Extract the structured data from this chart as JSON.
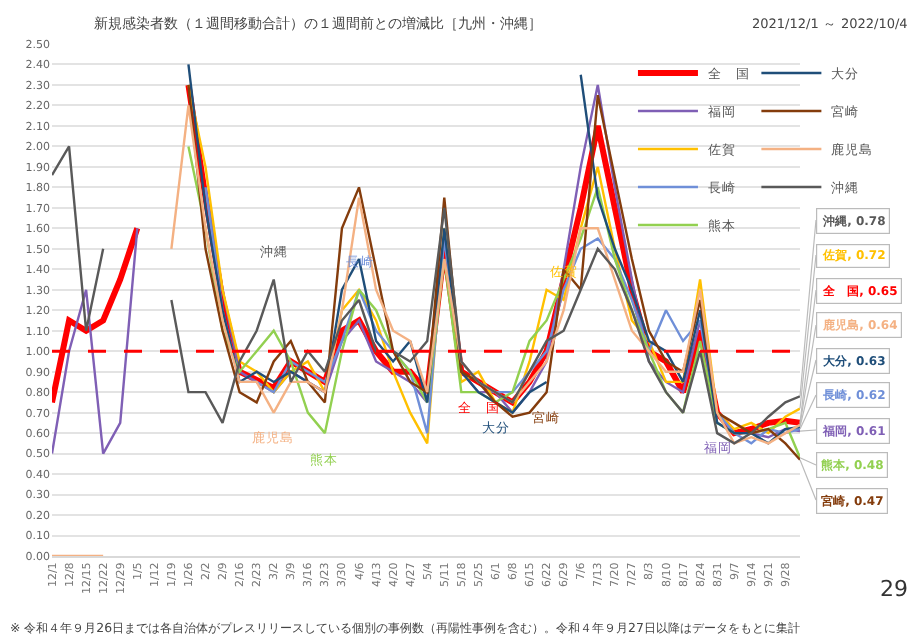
{
  "chart_data": {
    "type": "line",
    "title": "新規感染者数（１週間移動合計）の１週間前との増減比［九州・沖縄］",
    "subtitle": "2021/12/1 ～ 2022/10/4",
    "x": [
      "2021-12-01",
      "2021-12-08",
      "2021-12-15",
      "2021-12-22",
      "2021-12-29",
      "2022-01-05",
      "2022-01-12",
      "2022-01-19",
      "2022-01-26",
      "2022-02-02",
      "2022-02-09",
      "2022-02-16",
      "2022-02-23",
      "2022-03-02",
      "2022-03-09",
      "2022-03-16",
      "2022-03-23",
      "2022-03-30",
      "2022-04-06",
      "2022-04-13",
      "2022-04-20",
      "2022-04-27",
      "2022-05-04",
      "2022-05-11",
      "2022-05-18",
      "2022-05-25",
      "2022-06-01",
      "2022-06-08",
      "2022-06-15",
      "2022-06-22",
      "2022-06-29",
      "2022-07-06",
      "2022-07-13",
      "2022-07-20",
      "2022-07-27",
      "2022-08-03",
      "2022-08-10",
      "2022-08-17",
      "2022-08-24",
      "2022-08-31",
      "2022-09-07",
      "2022-09-14",
      "2022-09-21",
      "2022-09-28",
      "2022-10-04"
    ],
    "series": [
      {
        "name": "全　国",
        "color": "#ff0000",
        "values": [
          0.75,
          1.15,
          1.1,
          1.15,
          1.35,
          1.6,
          null,
          null,
          2.3,
          1.75,
          1.25,
          0.9,
          0.86,
          0.82,
          0.95,
          0.9,
          0.85,
          1.1,
          1.15,
          1.0,
          0.9,
          0.9,
          0.8,
          1.5,
          0.9,
          0.85,
          0.8,
          0.75,
          0.85,
          1.0,
          1.35,
          1.7,
          2.1,
          1.7,
          1.3,
          1.0,
          0.95,
          0.8,
          1.1,
          0.7,
          0.6,
          0.62,
          0.65,
          0.66,
          0.65
        ]
      },
      {
        "name": "福岡",
        "color": "#7f5fb5",
        "values": [
          0.5,
          1.0,
          1.3,
          0.5,
          0.65,
          1.6,
          null,
          null,
          null,
          1.8,
          1.3,
          0.9,
          0.85,
          0.8,
          0.9,
          0.85,
          0.8,
          1.05,
          1.15,
          0.95,
          0.9,
          0.85,
          0.75,
          1.55,
          0.9,
          0.8,
          0.8,
          0.7,
          0.8,
          0.95,
          1.4,
          1.9,
          2.3,
          1.8,
          1.35,
          0.95,
          0.85,
          0.8,
          1.15,
          0.65,
          0.6,
          0.6,
          0.58,
          0.62,
          0.61
        ]
      },
      {
        "name": "佐賀",
        "color": "#ffc000",
        "values": [
          null,
          null,
          null,
          null,
          null,
          null,
          null,
          null,
          2.3,
          1.9,
          1.3,
          0.95,
          0.9,
          0.8,
          0.9,
          0.95,
          0.8,
          1.2,
          1.3,
          1.15,
          0.9,
          0.7,
          0.55,
          1.6,
          0.85,
          0.9,
          0.75,
          0.7,
          0.95,
          1.3,
          1.25,
          1.6,
          1.9,
          1.5,
          1.15,
          1.05,
          0.85,
          0.85,
          1.35,
          0.7,
          0.62,
          0.65,
          0.6,
          0.68,
          0.72
        ]
      },
      {
        "name": "長崎",
        "color": "#6f8fd8",
        "values": [
          null,
          null,
          null,
          null,
          null,
          null,
          null,
          null,
          null,
          1.8,
          1.2,
          0.85,
          0.85,
          0.8,
          0.95,
          0.9,
          0.85,
          1.05,
          1.3,
          1.1,
          1.0,
          0.9,
          0.6,
          1.55,
          0.95,
          0.85,
          0.8,
          0.8,
          0.9,
          1.0,
          1.3,
          1.5,
          1.55,
          1.45,
          1.25,
          1.0,
          1.2,
          1.05,
          1.15,
          0.7,
          0.6,
          0.55,
          0.62,
          0.6,
          0.62
        ]
      },
      {
        "name": "熊本",
        "color": "#92d050",
        "values": [
          null,
          null,
          null,
          null,
          null,
          null,
          null,
          null,
          2.0,
          1.6,
          1.1,
          0.9,
          1.0,
          1.1,
          0.95,
          0.7,
          0.6,
          1.0,
          1.3,
          1.2,
          1.0,
          0.9,
          0.75,
          1.45,
          0.8,
          0.8,
          0.75,
          0.8,
          1.05,
          1.15,
          1.35,
          1.55,
          1.8,
          1.45,
          1.2,
          1.0,
          0.8,
          0.7,
          1.05,
          0.65,
          0.6,
          0.6,
          0.62,
          0.65,
          0.48
        ]
      },
      {
        "name": "大分",
        "color": "#1f4e79",
        "values": [
          null,
          null,
          null,
          null,
          null,
          null,
          null,
          null,
          2.4,
          1.7,
          1.2,
          0.85,
          0.9,
          0.85,
          0.9,
          0.85,
          0.8,
          1.3,
          1.45,
          1.05,
          0.95,
          1.05,
          0.75,
          1.6,
          0.9,
          0.8,
          0.75,
          0.7,
          0.8,
          0.85,
          null,
          2.35,
          1.75,
          1.5,
          1.3,
          1.05,
          1.0,
          0.85,
          1.2,
          0.65,
          0.6,
          0.6,
          0.55,
          0.62,
          0.63
        ]
      },
      {
        "name": "宮崎",
        "color": "#843c0c",
        "values": [
          null,
          null,
          null,
          null,
          null,
          null,
          null,
          null,
          2.3,
          1.5,
          1.1,
          0.8,
          0.75,
          0.95,
          1.05,
          0.85,
          0.75,
          1.6,
          1.8,
          1.4,
          1.0,
          0.85,
          0.8,
          1.75,
          0.9,
          0.85,
          0.75,
          0.68,
          0.7,
          0.8,
          1.4,
          1.3,
          2.25,
          1.85,
          1.45,
          1.1,
          0.95,
          0.9,
          1.25,
          0.7,
          0.65,
          0.6,
          0.62,
          0.55,
          0.47
        ]
      },
      {
        "name": "鹿児島",
        "color": "#f4b183",
        "values": [
          0,
          0,
          0,
          0,
          null,
          null,
          null,
          1.5,
          2.2,
          1.6,
          1.15,
          0.85,
          0.85,
          0.7,
          0.85,
          0.85,
          0.8,
          1.2,
          1.75,
          1.3,
          1.1,
          1.05,
          0.8,
          1.45,
          0.95,
          0.85,
          0.8,
          0.75,
          0.85,
          0.95,
          1.2,
          1.6,
          1.6,
          1.35,
          1.1,
          1.0,
          0.9,
          0.9,
          1.3,
          0.7,
          0.55,
          0.58,
          0.55,
          0.6,
          0.64
        ]
      },
      {
        "name": "沖縄",
        "color": "#595959",
        "values": [
          1.86,
          2.0,
          1.1,
          1.5,
          null,
          null,
          null,
          1.25,
          0.8,
          0.8,
          0.65,
          0.95,
          1.1,
          1.35,
          0.85,
          1.0,
          0.9,
          1.15,
          1.25,
          1.0,
          1.0,
          0.95,
          1.05,
          1.7,
          0.95,
          0.85,
          0.8,
          0.75,
          0.9,
          1.05,
          1.1,
          1.3,
          1.5,
          1.4,
          1.2,
          0.95,
          0.8,
          0.7,
          1.0,
          0.6,
          0.55,
          0.6,
          0.68,
          0.75,
          0.78
        ]
      }
    ],
    "xlim": [
      "2021-12-01",
      "2022-10-04"
    ],
    "xticks": [
      {
        "value": "2021-12-01",
        "label": "12/1"
      },
      {
        "value": "2021-12-08",
        "label": "12/8"
      },
      {
        "value": "2021-12-15",
        "label": "12/15"
      },
      {
        "value": "2021-12-22",
        "label": "12/22"
      },
      {
        "value": "2021-12-29",
        "label": "12/29"
      },
      {
        "value": "2022-01-05",
        "label": "1/5"
      },
      {
        "value": "2022-01-12",
        "label": "1/12"
      },
      {
        "value": "2022-01-19",
        "label": "1/19"
      },
      {
        "value": "2022-01-26",
        "label": "1/26"
      },
      {
        "value": "2022-02-02",
        "label": "2/2"
      },
      {
        "value": "2022-02-09",
        "label": "2/9"
      },
      {
        "value": "2022-02-16",
        "label": "2/16"
      },
      {
        "value": "2022-02-23",
        "label": "2/23"
      },
      {
        "value": "2022-03-02",
        "label": "3/2"
      },
      {
        "value": "2022-03-09",
        "label": "3/9"
      },
      {
        "value": "2022-03-16",
        "label": "3/16"
      },
      {
        "value": "2022-03-23",
        "label": "3/23"
      },
      {
        "value": "2022-03-30",
        "label": "3/30"
      },
      {
        "value": "2022-04-06",
        "label": "4/6"
      },
      {
        "value": "2022-04-13",
        "label": "4/13"
      },
      {
        "value": "2022-04-20",
        "label": "4/20"
      },
      {
        "value": "2022-04-27",
        "label": "4/27"
      },
      {
        "value": "2022-05-04",
        "label": "5/4"
      },
      {
        "value": "2022-05-11",
        "label": "5/11"
      },
      {
        "value": "2022-05-18",
        "label": "5/18"
      },
      {
        "value": "2022-05-25",
        "label": "5/25"
      },
      {
        "value": "2022-06-01",
        "label": "6/1"
      },
      {
        "value": "2022-06-08",
        "label": "6/8"
      },
      {
        "value": "2022-06-15",
        "label": "6/15"
      },
      {
        "value": "2022-06-22",
        "label": "6/22"
      },
      {
        "value": "2022-06-29",
        "label": "6/29"
      },
      {
        "value": "2022-07-06",
        "label": "7/6"
      },
      {
        "value": "2022-07-13",
        "label": "7/13"
      },
      {
        "value": "2022-07-20",
        "label": "7/20"
      },
      {
        "value": "2022-07-27",
        "label": "7/27"
      },
      {
        "value": "2022-08-03",
        "label": "8/3"
      },
      {
        "value": "2022-08-10",
        "label": "8/10"
      },
      {
        "value": "2022-08-17",
        "label": "8/17"
      },
      {
        "value": "2022-08-24",
        "label": "8/24"
      },
      {
        "value": "2022-08-31",
        "label": "8/31"
      },
      {
        "value": "2022-09-07",
        "label": "9/7"
      },
      {
        "value": "2022-09-14",
        "label": "9/14"
      },
      {
        "value": "2022-09-21",
        "label": "9/21"
      },
      {
        "value": "2022-09-28",
        "label": "9/28"
      }
    ],
    "ylim": [
      0,
      2.5
    ],
    "yticks": [
      {
        "value": 0,
        "label": "0.00"
      },
      {
        "value": 0.1,
        "label": "0.10"
      },
      {
        "value": 0.2,
        "label": "0.20"
      },
      {
        "value": 0.3,
        "label": "0.30"
      },
      {
        "value": 0.4,
        "label": "0.40"
      },
      {
        "value": 0.5,
        "label": "0.50"
      },
      {
        "value": 0.6,
        "label": "0.60"
      },
      {
        "value": 0.7,
        "label": "0.70"
      },
      {
        "value": 0.8,
        "label": "0.80"
      },
      {
        "value": 0.9,
        "label": "0.90"
      },
      {
        "value": 1.0,
        "label": "1.00"
      },
      {
        "value": 1.1,
        "label": "1.10"
      },
      {
        "value": 1.2,
        "label": "1.20"
      },
      {
        "value": 1.3,
        "label": "1.30"
      },
      {
        "value": 1.4,
        "label": "1.40"
      },
      {
        "value": 1.5,
        "label": "1.50"
      },
      {
        "value": 1.6,
        "label": "1.60"
      },
      {
        "value": 1.7,
        "label": "1.70"
      },
      {
        "value": 1.8,
        "label": "1.80"
      },
      {
        "value": 1.9,
        "label": "1.90"
      },
      {
        "value": 2.0,
        "label": "2.00"
      },
      {
        "value": 2.1,
        "label": "2.10"
      },
      {
        "value": 2.2,
        "label": "2.20"
      },
      {
        "value": 2.3,
        "label": "2.30"
      },
      {
        "value": 2.4,
        "label": "2.40"
      },
      {
        "value": 2.5,
        "label": "2.50"
      }
    ],
    "grid": "y",
    "legend": "top right",
    "marker": "none",
    "line_style": "solid",
    "ref_lines": [
      {
        "axis": "y",
        "value": 1.0,
        "color": "#ff0000",
        "line_style": "dashed"
      }
    ],
    "annotations": [
      "※ 令和４年９月26日までは各自治体がプレスリリースしている個別の事例数（再陽性事例を含む）。令和４年９月27日以降はデータをもとに集計",
      "29",
      {
        "text": "沖縄",
        "x": "2022-03-02",
        "y": 1.35
      },
      {
        "text": "鹿児島",
        "x": "2022-03-02",
        "y": 0.7
      },
      {
        "text": "熊本",
        "x": "2022-03-23",
        "y": 0.6
      },
      {
        "text": "長崎",
        "x": "2022-04-06",
        "y": 1.3
      },
      {
        "text": "佐賀",
        "x": "2022-06-29",
        "y": 1.25
      },
      {
        "text": "全　国",
        "x": "2022-05-25",
        "y": 0.85
      },
      {
        "text": "宮崎",
        "x": "2022-06-22",
        "y": 0.8
      },
      {
        "text": "大分",
        "x": "2022-06-01",
        "y": 0.75
      },
      {
        "text": "福岡",
        "x": "2022-08-31",
        "y": 0.65
      },
      {
        "text": "沖縄, 0.78",
        "x": "2022-10-04",
        "y": 0.78
      },
      {
        "text": "佐賀, 0.72",
        "x": "2022-10-04",
        "y": 0.72
      },
      {
        "text": "全　国, 0.65",
        "x": "2022-10-04",
        "y": 0.65
      },
      {
        "text": "鹿児島, 0.64",
        "x": "2022-10-04",
        "y": 0.64
      },
      {
        "text": "大分, 0.63",
        "x": "2022-10-04",
        "y": 0.63
      },
      {
        "text": "長崎, 0.62",
        "x": "2022-10-04",
        "y": 0.62
      },
      {
        "text": "福岡, 0.61",
        "x": "2022-10-04",
        "y": 0.61
      },
      {
        "text": "熊本, 0.48",
        "x": "2022-10-04",
        "y": 0.48
      },
      {
        "text": "宮崎, 0.47",
        "x": "2022-10-04",
        "y": 0.47
      }
    ]
  }
}
